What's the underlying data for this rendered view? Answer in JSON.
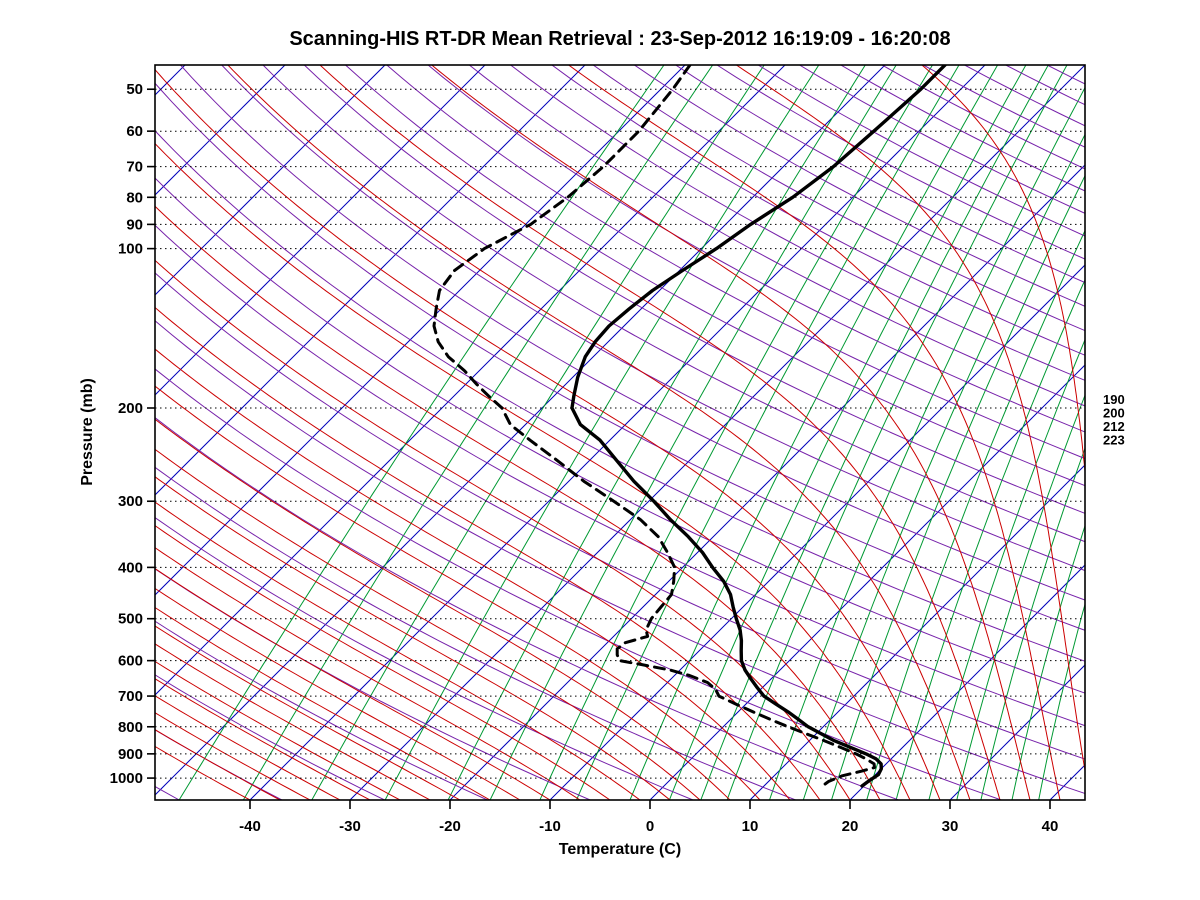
{
  "chart_data": {
    "type": "line",
    "variant": "skew-t-log-p-sounding",
    "title": "Scanning-HIS RT-DR Mean Retrieval : 23-Sep-2012 16:19:09 - 16:20:08",
    "xlabel": "Temperature (C)",
    "ylabel": "Pressure (mb)",
    "x_ticks": [
      -40,
      -30,
      -20,
      -10,
      0,
      10,
      20,
      30,
      40
    ],
    "y_ticks": [
      50,
      60,
      70,
      80,
      90,
      100,
      200,
      300,
      400,
      500,
      600,
      700,
      800,
      900,
      1000
    ],
    "x_range_at_surface": [
      -49.5,
      43.5
    ],
    "pressure_range": [
      45,
      1100
    ],
    "grid": "dotted-horizontal-pressure-lines",
    "legend": "none",
    "right_labels": [
      "190",
      "200",
      "212",
      "223"
    ],
    "series": [
      {
        "name": "temperature",
        "label": "Temperature profile (solid)",
        "color": "#000000",
        "width": 3.4,
        "dash": null,
        "points": [
          [
            45,
            -44
          ],
          [
            50,
            -44
          ],
          [
            60,
            -44.5
          ],
          [
            70,
            -45
          ],
          [
            80,
            -46
          ],
          [
            90,
            -47.5
          ],
          [
            100,
            -48.5
          ],
          [
            110,
            -49.7
          ],
          [
            120,
            -50.7
          ],
          [
            130,
            -51.2
          ],
          [
            140,
            -51.5
          ],
          [
            150,
            -51.3
          ],
          [
            160,
            -50.8
          ],
          [
            175,
            -49.5
          ],
          [
            190,
            -48
          ],
          [
            200,
            -47
          ],
          [
            215,
            -44.5
          ],
          [
            230,
            -41
          ],
          [
            250,
            -37.5
          ],
          [
            275,
            -33.5
          ],
          [
            300,
            -29.5
          ],
          [
            325,
            -26
          ],
          [
            350,
            -22.5
          ],
          [
            375,
            -19.5
          ],
          [
            400,
            -17
          ],
          [
            425,
            -14.5
          ],
          [
            450,
            -12.5
          ],
          [
            475,
            -11
          ],
          [
            500,
            -9.5
          ],
          [
            525,
            -8
          ],
          [
            550,
            -6.8
          ],
          [
            575,
            -5.8
          ],
          [
            600,
            -4.8
          ],
          [
            625,
            -3.5
          ],
          [
            650,
            -2
          ],
          [
            675,
            -0.5
          ],
          [
            700,
            1
          ],
          [
            725,
            3
          ],
          [
            750,
            5
          ],
          [
            775,
            6.8
          ],
          [
            800,
            8.5
          ],
          [
            825,
            10.5
          ],
          [
            850,
            12.5
          ],
          [
            875,
            14.8
          ],
          [
            900,
            17
          ],
          [
            920,
            18.5
          ],
          [
            940,
            19.5
          ],
          [
            960,
            20
          ],
          [
            985,
            20.3
          ],
          [
            1010,
            20
          ],
          [
            1035,
            19.8
          ]
        ]
      },
      {
        "name": "dewpoint",
        "label": "Dew point profile (dashed)",
        "color": "#000000",
        "width": 3.0,
        "dash": "10,7",
        "points": [
          [
            45,
            -69.5
          ],
          [
            50,
            -68.8
          ],
          [
            60,
            -68
          ],
          [
            70,
            -68
          ],
          [
            80,
            -68.5
          ],
          [
            90,
            -69.5
          ],
          [
            100,
            -71.7
          ],
          [
            110,
            -72.5
          ],
          [
            120,
            -72
          ],
          [
            130,
            -70.5
          ],
          [
            140,
            -69
          ],
          [
            150,
            -67
          ],
          [
            160,
            -64.5
          ],
          [
            170,
            -61.5
          ],
          [
            180,
            -59
          ],
          [
            190,
            -56.5
          ],
          [
            200,
            -54
          ],
          [
            215,
            -51.5
          ],
          [
            230,
            -48
          ],
          [
            250,
            -43.5
          ],
          [
            275,
            -38.5
          ],
          [
            300,
            -33.5
          ],
          [
            325,
            -29
          ],
          [
            350,
            -25.5
          ],
          [
            375,
            -23
          ],
          [
            400,
            -20.8
          ],
          [
            425,
            -19.5
          ],
          [
            450,
            -18.4
          ],
          [
            475,
            -18.2
          ],
          [
            500,
            -18
          ],
          [
            525,
            -17.4
          ],
          [
            540,
            -16.6
          ],
          [
            555,
            -18.2
          ],
          [
            570,
            -18.4
          ],
          [
            585,
            -17.8
          ],
          [
            600,
            -17
          ],
          [
            610,
            -14.5
          ],
          [
            625,
            -11
          ],
          [
            640,
            -8.5
          ],
          [
            660,
            -6
          ],
          [
            680,
            -4.5
          ],
          [
            700,
            -3.5
          ],
          [
            725,
            -1
          ],
          [
            750,
            1.5
          ],
          [
            775,
            4
          ],
          [
            800,
            6.5
          ],
          [
            825,
            9
          ],
          [
            850,
            11.5
          ],
          [
            875,
            13.8
          ],
          [
            900,
            16
          ],
          [
            920,
            17.5
          ],
          [
            940,
            18.8
          ],
          [
            955,
            19.2
          ],
          [
            970,
            18.3
          ],
          [
            990,
            16.8
          ],
          [
            1015,
            16
          ],
          [
            1040,
            15.8
          ]
        ]
      }
    ],
    "background": {
      "isotherm_color": "#0000bb",
      "isotherms": {
        "min": -130,
        "max": 50,
        "step": 10
      },
      "dry_adiabat_color": "#7722aa",
      "dry_adiabats": {
        "min": 220,
        "max": 600,
        "step": 10
      },
      "moist_adiabat_color": "#cc0000",
      "moist_adiabats": {
        "min": -40,
        "max": 47,
        "step": 3
      },
      "mixing_ratio_color": "#009933",
      "mixing_ratio_values": [
        0.05,
        0.1,
        0.2,
        0.4,
        0.7,
        1,
        1.5,
        2,
        3,
        4,
        5,
        6,
        8,
        10,
        12,
        15,
        18,
        22,
        26,
        30,
        36,
        42
      ],
      "pressure_line_color": "#000000"
    }
  }
}
